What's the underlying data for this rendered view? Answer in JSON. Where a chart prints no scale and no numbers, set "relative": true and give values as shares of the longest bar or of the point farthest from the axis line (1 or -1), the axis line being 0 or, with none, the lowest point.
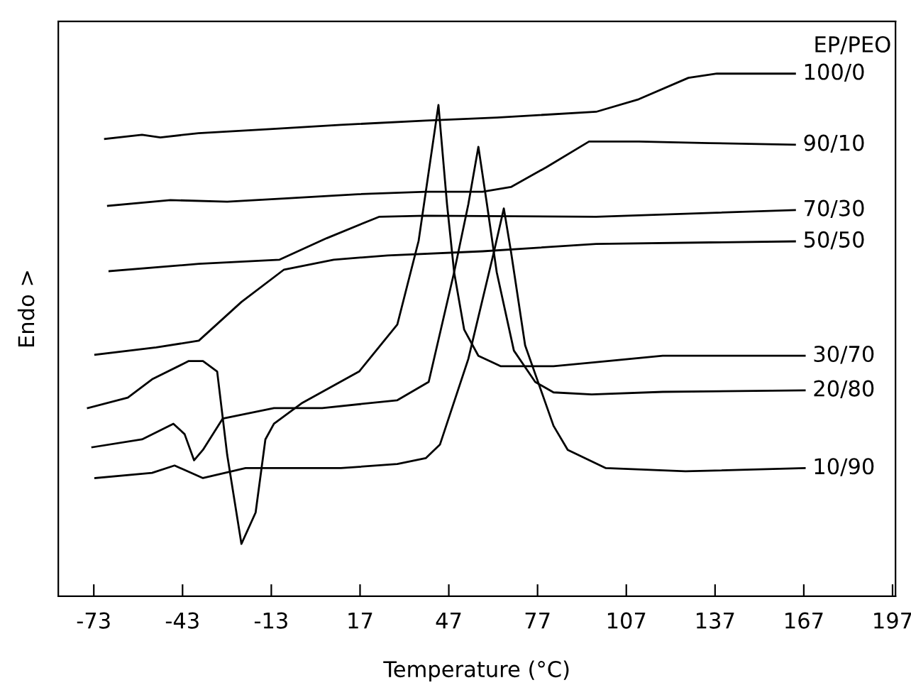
{
  "chart_data": {
    "type": "line",
    "xlabel": "Temperature (°C)",
    "ylabel": "Endo >",
    "relative": true,
    "xlim": [
      -85,
      198
    ],
    "xticks": [
      -73,
      -43,
      -13,
      17,
      47,
      77,
      107,
      137,
      167,
      197
    ],
    "tick_labels": "x",
    "grid": false,
    "legend": false,
    "marker": "none",
    "line_style": "solid",
    "annotations": [
      "EP/PEO"
    ],
    "series": [
      {
        "name": "100/0",
        "color": "#000000",
        "x": [
          -69.2,
          -56.7,
          -50.5,
          -37.6,
          -13.5,
          10.5,
          39.2,
          63.2,
          96.8,
          111.2,
          128,
          137.6,
          164
        ],
        "values": [
          0.875,
          0.883,
          0.878,
          0.886,
          0.894,
          0.902,
          0.91,
          0.916,
          0.927,
          0.951,
          0.992,
          1.0,
          1.0
        ]
      },
      {
        "name": "90/10",
        "color": "#000000",
        "x": [
          -68.2,
          -47.1,
          -27.9,
          -8.7,
          15.2,
          39.2,
          58.4,
          68,
          80,
          94.4,
          111.2,
          135.2,
          164
        ],
        "values": [
          0.747,
          0.758,
          0.755,
          0.761,
          0.769,
          0.774,
          0.774,
          0.783,
          0.821,
          0.87,
          0.87,
          0.867,
          0.864
        ]
      },
      {
        "name": "70/30",
        "color": "#000000",
        "x": [
          -67.7,
          -37.5,
          -10.2,
          5.7,
          23.4,
          39.2,
          96.8,
          164
        ],
        "values": [
          0.622,
          0.636,
          0.644,
          0.685,
          0.726,
          0.728,
          0.726,
          0.739
        ]
      },
      {
        "name": "50/50",
        "color": "#000000",
        "x": [
          -72.5,
          -51.9,
          -37.5,
          -23.1,
          -8.7,
          8.1,
          26.3,
          58.4,
          96.8,
          135.2,
          164
        ],
        "values": [
          0.462,
          0.476,
          0.489,
          0.563,
          0.625,
          0.644,
          0.652,
          0.66,
          0.674,
          0.677,
          0.679
        ]
      },
      {
        "name": "30/70",
        "color": "#000000",
        "x": [
          -75,
          -61.5,
          -53.3,
          -40.9,
          -36.1,
          -31.3,
          -27.9,
          -23.1,
          -18.3,
          -15,
          -12.1,
          -2.5,
          16.7,
          29.6,
          36.8,
          43.5,
          46.4,
          48.8,
          52.2,
          57,
          64.6,
          82.4,
          119.3,
          143.3,
          167.3
        ],
        "values": [
          0.36,
          0.38,
          0.415,
          0.45,
          0.45,
          0.43,
          0.27,
          0.1,
          0.16,
          0.3,
          0.33,
          0.37,
          0.43,
          0.52,
          0.68,
          0.94,
          0.75,
          0.62,
          0.51,
          0.46,
          0.44,
          0.44,
          0.46,
          0.46,
          0.46
        ]
      },
      {
        "name": "20/80",
        "color": "#000000",
        "x": [
          -73.5,
          -56.7,
          -46.1,
          -42.3,
          -39.1,
          -36.1,
          -29.4,
          -12.1,
          4.2,
          29.6,
          40.2,
          48.8,
          53.6,
          57,
          59.9,
          63.2,
          69,
          76.2,
          82.4,
          95.3,
          119.3,
          167.3
        ],
        "values": [
          0.285,
          0.3,
          0.33,
          0.31,
          0.26,
          0.28,
          0.34,
          0.36,
          0.36,
          0.375,
          0.41,
          0.62,
          0.75,
          0.86,
          0.75,
          0.62,
          0.47,
          0.41,
          0.39,
          0.386,
          0.391,
          0.394
        ]
      },
      {
        "name": "10/90",
        "color": "#000000",
        "x": [
          -72.5,
          -53.3,
          -45.7,
          -36.1,
          -21.7,
          10.5,
          29.6,
          39.2,
          44,
          53.6,
          62.3,
          65.6,
          68,
          72.8,
          82.4,
          87.2,
          100.1,
          127,
          167.3
        ],
        "values": [
          0.226,
          0.236,
          0.25,
          0.226,
          0.245,
          0.245,
          0.253,
          0.264,
          0.29,
          0.454,
          0.66,
          0.742,
          0.66,
          0.48,
          0.326,
          0.28,
          0.245,
          0.239,
          0.245
        ]
      }
    ]
  }
}
